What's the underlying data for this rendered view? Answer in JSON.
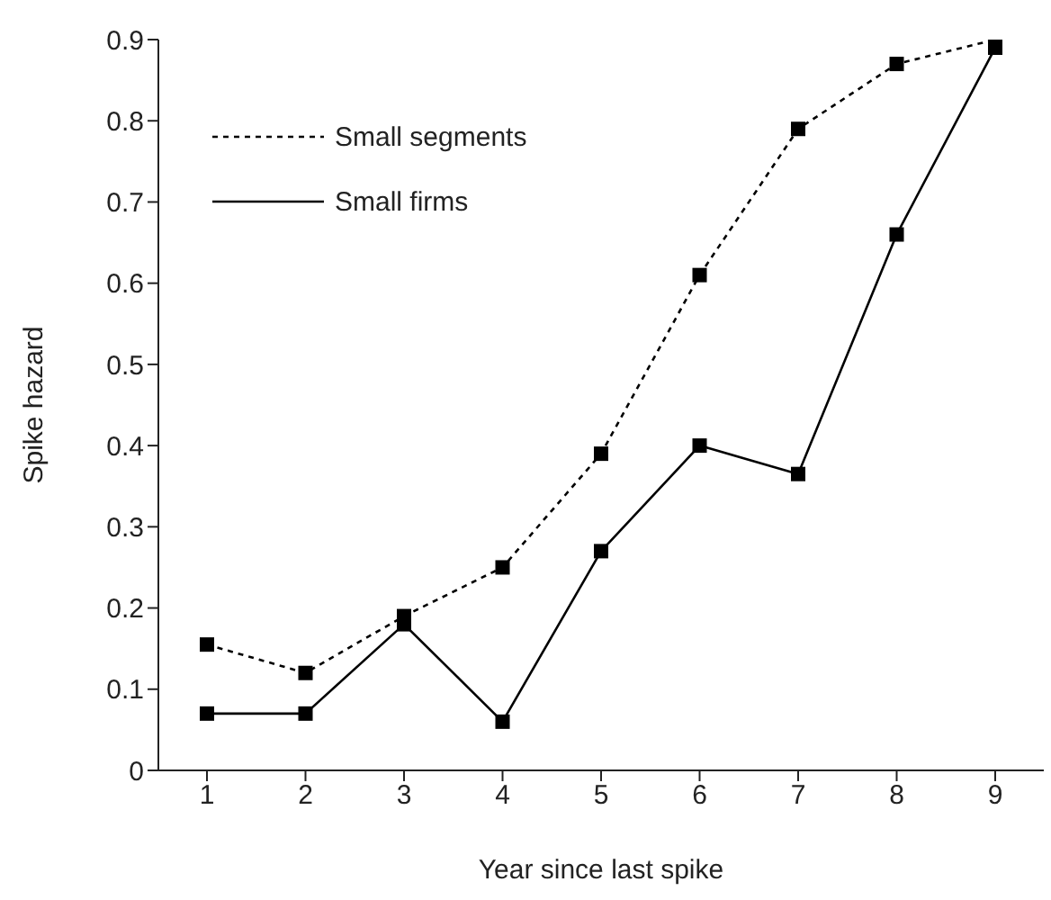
{
  "chart_data": {
    "type": "line",
    "xlabel": "Year since last spike",
    "ylabel": "Spike hazard",
    "categories": [
      "1",
      "2",
      "3",
      "4",
      "5",
      "6",
      "7",
      "8",
      "9"
    ],
    "series": [
      {
        "name": "Small segments",
        "color": "#000000",
        "line_style": "dotted",
        "values": [
          0.155,
          0.12,
          0.19,
          0.25,
          0.39,
          0.61,
          0.79,
          0.87,
          0.9
        ]
      },
      {
        "name": "Small firms",
        "color": "#000000",
        "line_style": "solid",
        "values": [
          0.07,
          0.07,
          0.18,
          0.06,
          0.27,
          0.4,
          0.365,
          0.66,
          0.89
        ]
      }
    ],
    "ylim": [
      0,
      0.9
    ],
    "yticks": [
      0,
      0.1,
      0.2,
      0.3,
      0.4,
      0.5,
      0.6,
      0.7,
      0.8,
      0.9
    ],
    "grid": false,
    "legend": "top left",
    "marker": "square"
  }
}
